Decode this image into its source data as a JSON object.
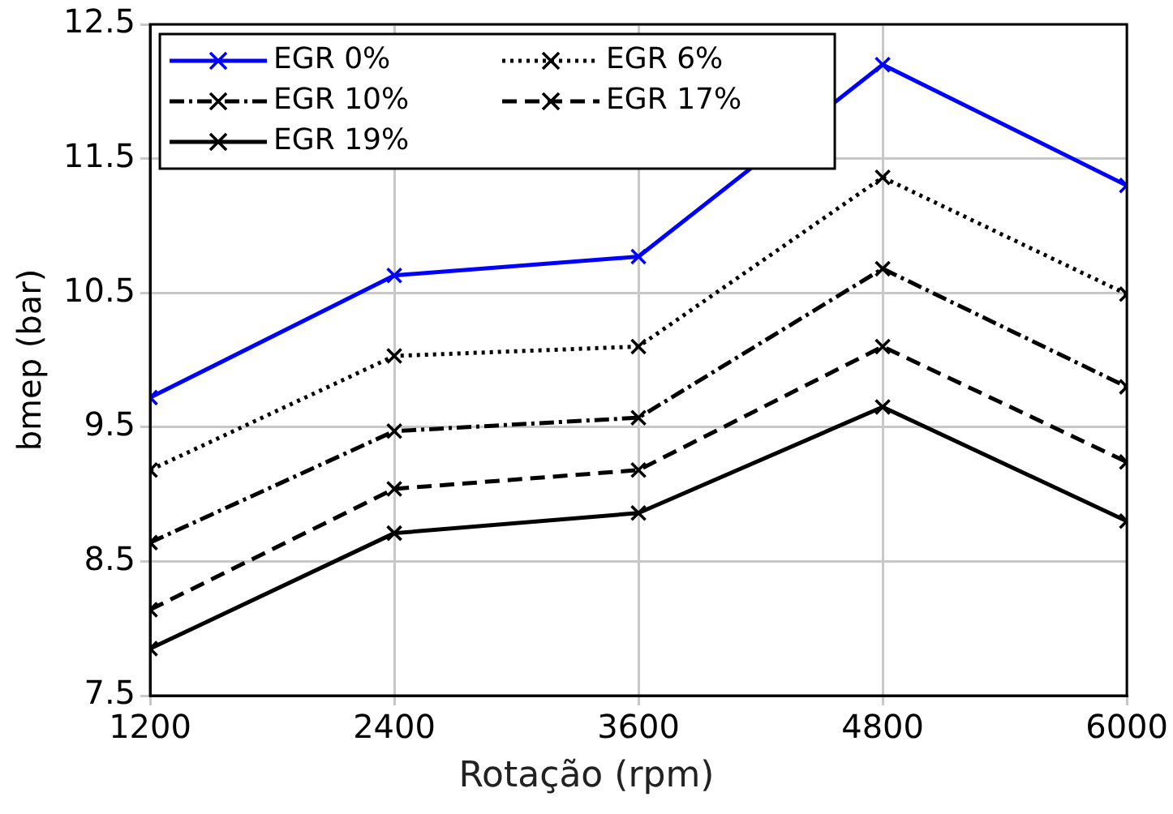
{
  "chart_data": {
    "type": "line",
    "xlabel": "Rotação (rpm)",
    "ylabel": "bmep (bar)",
    "x": [
      1200,
      2400,
      3600,
      4800,
      6000
    ],
    "xlim": [
      1200,
      6000
    ],
    "xticks": [
      1200,
      2400,
      3600,
      4800,
      6000
    ],
    "ylim": [
      7.5,
      12.5
    ],
    "yticks": [
      7.5,
      8.5,
      9.5,
      10.5,
      11.5,
      12.5
    ],
    "grid": true,
    "legend": "top left",
    "marker": "cross",
    "series": [
      {
        "name": "EGR 0%",
        "color": "#0000ff",
        "line_style": "solid",
        "values": [
          9.72,
          10.63,
          10.77,
          12.2,
          11.3
        ]
      },
      {
        "name": "EGR 6%",
        "color": "#000000",
        "line_style": "dotted",
        "values": [
          9.18,
          10.03,
          10.1,
          11.36,
          10.49
        ]
      },
      {
        "name": "EGR 10%",
        "color": "#000000",
        "line_style": "dashdot",
        "values": [
          8.64,
          9.47,
          9.57,
          10.68,
          9.8
        ]
      },
      {
        "name": "EGR 17%",
        "color": "#000000",
        "line_style": "dashed",
        "values": [
          8.14,
          9.04,
          9.18,
          10.1,
          9.24
        ]
      },
      {
        "name": "EGR 19%",
        "color": "#000000",
        "line_style": "solid",
        "values": [
          7.85,
          8.71,
          8.86,
          9.65,
          8.8
        ]
      }
    ]
  }
}
